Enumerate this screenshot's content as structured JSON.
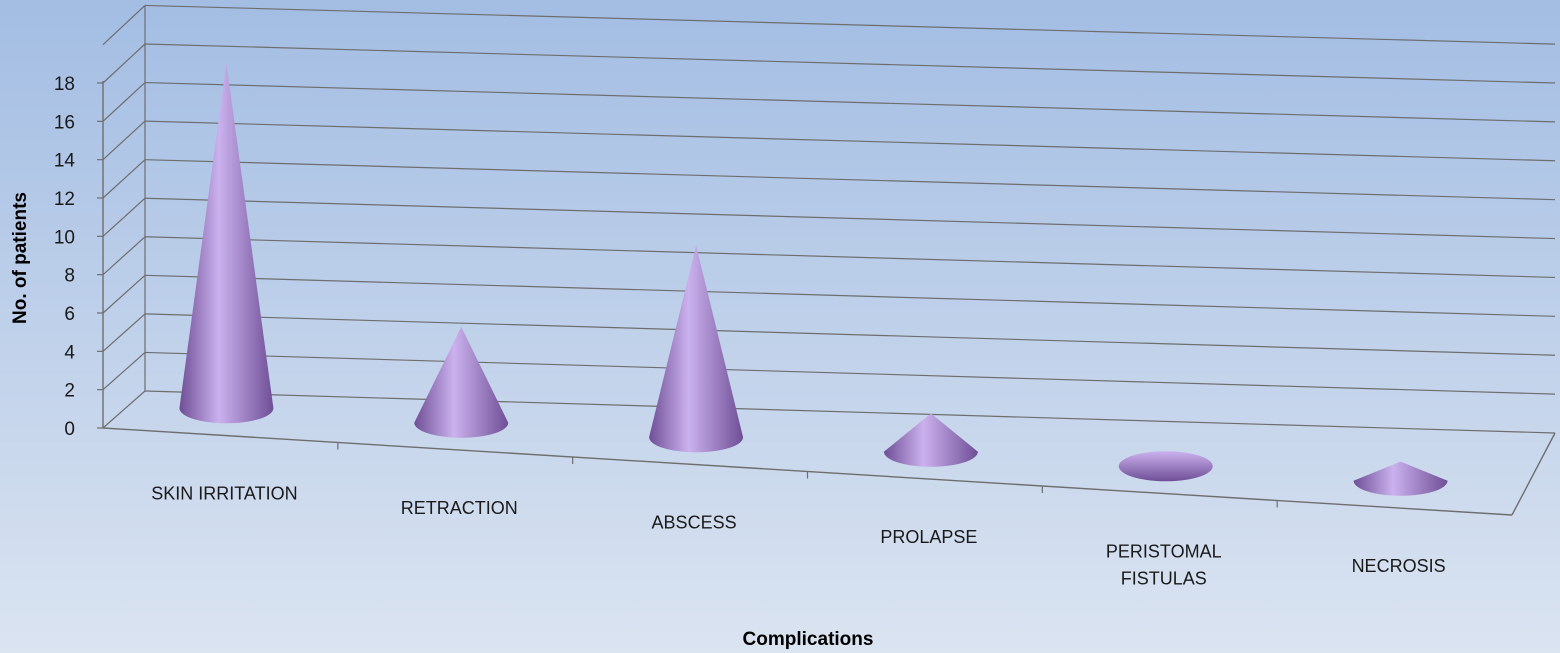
{
  "chart_data": {
    "type": "bar",
    "style": "3d-cone",
    "title": "",
    "xlabel": "Complications",
    "ylabel": "No. of patients",
    "ylim": [
      0,
      18
    ],
    "yticks": [
      "0",
      "2",
      "4",
      "6",
      "8",
      "10",
      "12",
      "14",
      "16",
      "18"
    ],
    "grid": true,
    "legend": "none",
    "categories": [
      [
        "SKIN IRRITATION"
      ],
      [
        "RETRACTION"
      ],
      [
        "ABSCESS"
      ],
      [
        "PROLAPSE"
      ],
      [
        "PERISTOMAL",
        "FISTULAS"
      ],
      [
        "NECROSIS"
      ]
    ],
    "series": [
      {
        "values": [
          18,
          5,
          10,
          2,
          0,
          1
        ]
      }
    ],
    "colors": {
      "cone_dark": "#6f4e96",
      "cone_light": "#cbb2ee",
      "background_top": "#a3bde3",
      "background_bottom": "#dbe4f1",
      "grid": "#6e6e6e"
    }
  }
}
